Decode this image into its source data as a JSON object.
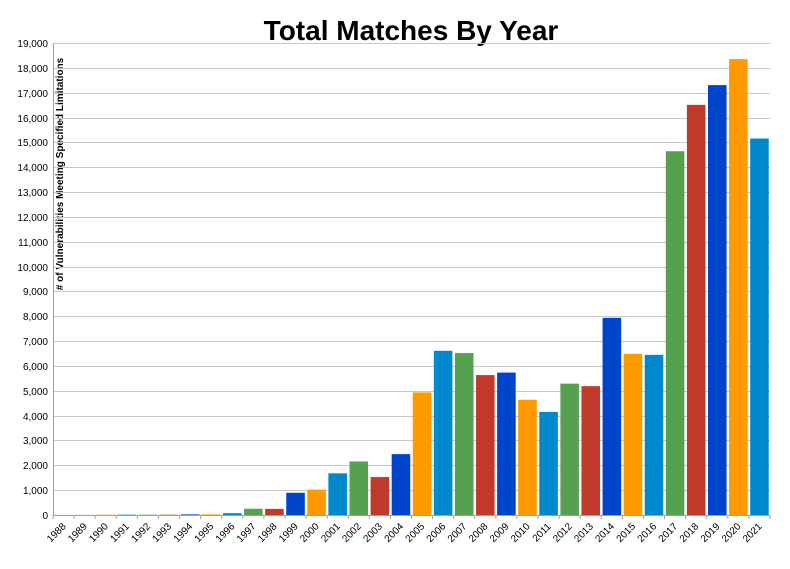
{
  "chart_data": {
    "type": "bar",
    "title": "Total Matches By Year",
    "xlabel": "",
    "ylabel": "# of Vulnerabilities Meeting Specified Limitations",
    "ylim": [
      0,
      19000
    ],
    "ytick_step": 1000,
    "grid": true,
    "legend": "none",
    "categories": [
      "1988",
      "1989",
      "1990",
      "1991",
      "1992",
      "1993",
      "1994",
      "1995",
      "1996",
      "1997",
      "1998",
      "1999",
      "2000",
      "2001",
      "2002",
      "2003",
      "2004",
      "2005",
      "2006",
      "2007",
      "2008",
      "2009",
      "2010",
      "2011",
      "2012",
      "2013",
      "2014",
      "2015",
      "2016",
      "2017",
      "2018",
      "2019",
      "2020",
      "2021"
    ],
    "values": [
      2,
      3,
      11,
      15,
      13,
      13,
      25,
      25,
      75,
      252,
      246,
      894,
      1020,
      1677,
      2156,
      1527,
      2451,
      4935,
      6610,
      6520,
      5632,
      5733,
      4639,
      4150,
      5288,
      5186,
      7937,
      6487,
      6447,
      14643,
      16510,
      17305,
      18351,
      15154
    ],
    "color_cycle": [
      "#c0392b",
      "#0044cc",
      "#ff9900",
      "#0088cc",
      "#55a150"
    ]
  }
}
